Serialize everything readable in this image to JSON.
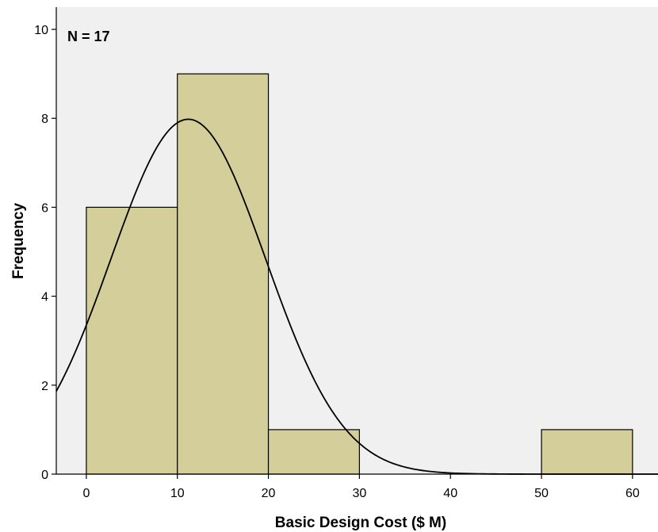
{
  "chart_data": {
    "type": "bar",
    "subtype": "histogram",
    "xlabel": "Basic Design Cost ($ M)",
    "ylabel": "Frequency",
    "annotation": "N = 17",
    "bins": [
      {
        "start": 0,
        "end": 10,
        "count": 6
      },
      {
        "start": 10,
        "end": 20,
        "count": 9
      },
      {
        "start": 20,
        "end": 30,
        "count": 1
      },
      {
        "start": 50,
        "end": 60,
        "count": 1
      }
    ],
    "normal_curve": {
      "mean": 11.2,
      "sd": 8.5,
      "n": 17,
      "bin_width": 10
    },
    "xlim": [
      -3.3,
      62.8
    ],
    "ylim": [
      0,
      10.5
    ],
    "xticks": [
      "0",
      "10",
      "20",
      "30",
      "40",
      "50",
      "60"
    ],
    "yticks": [
      "0",
      "2",
      "4",
      "6",
      "8",
      "10"
    ],
    "grid": false,
    "legend": "none",
    "colors": {
      "plot_background": "#f0f0f0",
      "bar_fill": "#d3ce9a",
      "bar_stroke": "#000000",
      "curve": "#000000"
    }
  }
}
